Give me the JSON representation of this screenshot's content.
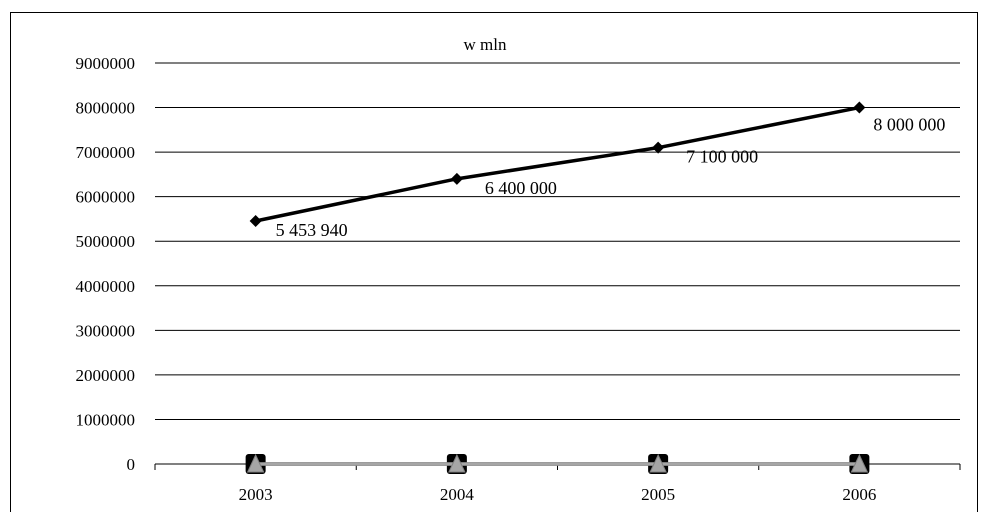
{
  "chart_data": {
    "type": "line",
    "title": "w mln",
    "categories": [
      "2003",
      "2004",
      "2005",
      "2006"
    ],
    "ylim": [
      0,
      9000000
    ],
    "yticks": [
      0,
      1000000,
      2000000,
      3000000,
      4000000,
      5000000,
      6000000,
      7000000,
      8000000,
      9000000
    ],
    "ytick_labels": [
      "0",
      "1000000",
      "2000000",
      "3000000",
      "4000000",
      "5000000",
      "6000000",
      "7000000",
      "8000000",
      "9000000"
    ],
    "grid": true,
    "series": [
      {
        "values": [
          5453940,
          6400000,
          7100000,
          8000000
        ],
        "data_labels": [
          "5 453 940",
          "6 400 000",
          "7 100 000",
          "8 000 000"
        ],
        "color": "#000000",
        "marker": "diamond"
      },
      {
        "values": [
          0,
          0,
          0,
          0
        ],
        "color": "#000000",
        "marker": "square"
      },
      {
        "values": [
          0,
          0,
          0,
          0
        ],
        "color": "#a6a6a6",
        "marker": "triangle"
      }
    ]
  }
}
